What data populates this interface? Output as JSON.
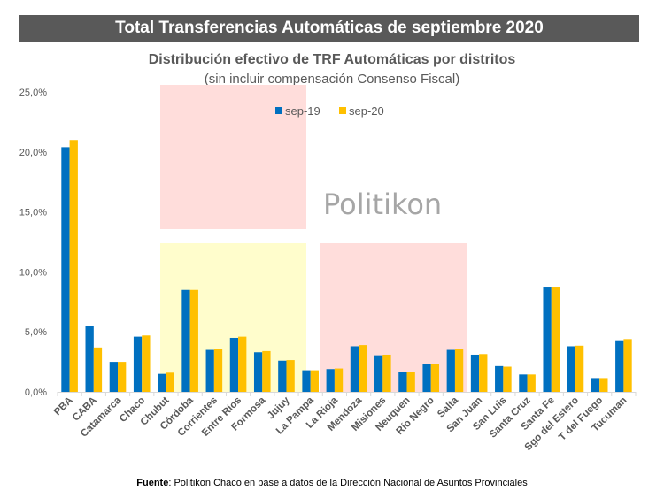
{
  "header": {
    "title": "Total Transferencias Automáticas de septiembre 2020"
  },
  "watermark": "Politikon",
  "footer": {
    "label": "Fuente",
    "text": ": Politikon Chaco en base a datos de la Dirección Nacional de Asuntos Provinciales"
  },
  "chart_data": {
    "type": "bar",
    "title": "Distribución efectivo de TRF Automáticas por distritos",
    "subtitle": "(sin incluir compensación Consenso Fiscal)",
    "xlabel": "",
    "ylabel": "",
    "ylim": [
      0,
      25
    ],
    "yticks": [
      "0,0%",
      "5,0%",
      "10,0%",
      "15,0%",
      "20,0%",
      "25,0%"
    ],
    "legend_position": "top-center",
    "categories": [
      "PBA",
      "CABA",
      "Catamarca",
      "Chaco",
      "Chubut",
      "Córdoba",
      "Corrientes",
      "Entre Ríos",
      "Formosa",
      "Jujuy",
      "La Pampa",
      "La Rioja",
      "Mendoza",
      "Misiones",
      "Neuquen",
      "Río Negro",
      "Salta",
      "San Juan",
      "San Luis",
      "Santa Cruz",
      "Santa Fe",
      "Sgo del Estero",
      "T del Fuego",
      "Tucuman"
    ],
    "series": [
      {
        "name": "sep-19",
        "color": "#0070C0",
        "values": [
          20.4,
          5.5,
          2.5,
          4.6,
          1.5,
          8.5,
          3.5,
          4.5,
          3.3,
          2.6,
          1.8,
          1.9,
          3.8,
          3.05,
          1.65,
          2.35,
          3.5,
          3.1,
          2.15,
          1.45,
          8.7,
          3.8,
          1.15,
          4.3
        ]
      },
      {
        "name": "sep-20",
        "color": "#FFC000",
        "values": [
          21.0,
          3.7,
          2.5,
          4.7,
          1.6,
          8.5,
          3.6,
          4.6,
          3.4,
          2.65,
          1.8,
          1.95,
          3.9,
          3.1,
          1.65,
          2.35,
          3.55,
          3.15,
          2.1,
          1.45,
          8.7,
          3.85,
          1.15,
          4.4
        ]
      }
    ]
  }
}
